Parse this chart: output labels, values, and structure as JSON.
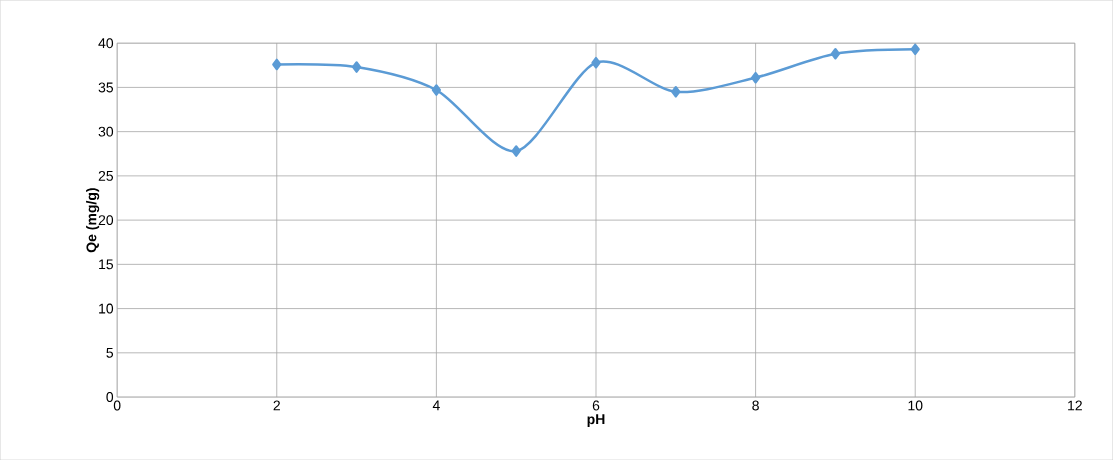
{
  "chart_data": {
    "type": "line",
    "xlabel": "pH",
    "ylabel": "Qe (mg/g)",
    "x": [
      2,
      3,
      4,
      5,
      6,
      7,
      8,
      9,
      10
    ],
    "series": [
      {
        "color": "#5b9bd5",
        "values": [
          37.6,
          37.3,
          34.7,
          27.8,
          37.8,
          34.5,
          36.1,
          38.8,
          39.3
        ]
      }
    ],
    "xlim": [
      0,
      12
    ],
    "xticks": [
      0,
      2,
      4,
      6,
      8,
      10,
      12
    ],
    "ylim": [
      0,
      40
    ],
    "yticks": [
      0,
      5,
      10,
      15,
      20,
      25,
      30,
      35,
      40
    ],
    "grid": true,
    "marker": "diamond",
    "line_style": "solid"
  }
}
